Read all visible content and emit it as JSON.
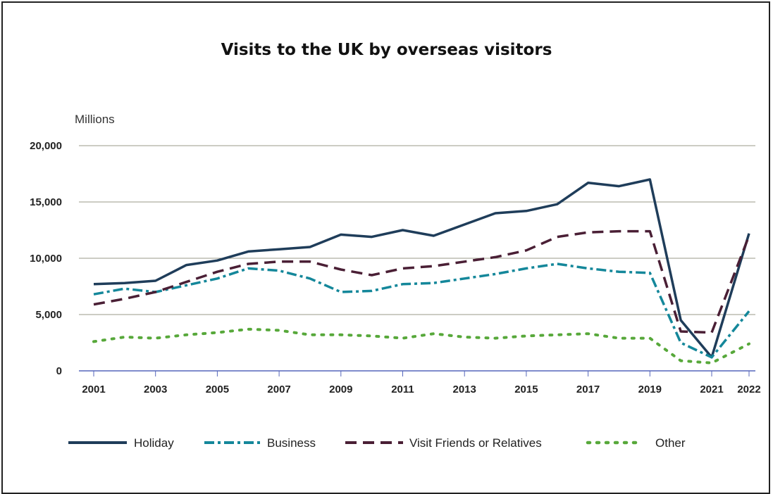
{
  "chart_data": {
    "type": "line",
    "title": "Visits to the UK by overseas visitors",
    "ylabel": "Millions",
    "xlabel": "",
    "ylim": [
      0,
      20000
    ],
    "yticks": [
      "0",
      "5,000",
      "10,000",
      "15,000",
      "20,000"
    ],
    "ytick_values": [
      0,
      5000,
      10000,
      15000,
      20000
    ],
    "xticks": [
      "2001",
      "2003",
      "2005",
      "2007",
      "2009",
      "2011",
      "2013",
      "2015",
      "2017",
      "2019",
      "2021",
      "2022"
    ],
    "xtick_values": [
      2001,
      2003,
      2005,
      2007,
      2009,
      2011,
      2013,
      2015,
      2017,
      2019,
      2021,
      2022
    ],
    "grid": "horizontal",
    "legend_position": "bottom",
    "x": [
      2001,
      2002,
      2003,
      2004,
      2005,
      2006,
      2007,
      2008,
      2009,
      2010,
      2011,
      2012,
      2013,
      2014,
      2015,
      2016,
      2017,
      2018,
      2019,
      2020,
      2021,
      2022
    ],
    "series": [
      {
        "name": "Holiday",
        "color": "#1f3d5a",
        "style": "solid",
        "values": [
          7700,
          7800,
          8000,
          9400,
          9800,
          10600,
          10800,
          11000,
          12100,
          11900,
          12500,
          12000,
          13000,
          14000,
          14200,
          14800,
          16700,
          16400,
          17000,
          4500,
          1200,
          12200
        ]
      },
      {
        "name": "Business",
        "color": "#14879a",
        "style": "dashdot",
        "values": [
          6800,
          7300,
          7000,
          7600,
          8200,
          9100,
          8900,
          8200,
          7000,
          7100,
          7700,
          7800,
          8200,
          8600,
          9100,
          9500,
          9100,
          8800,
          8700,
          2500,
          1200,
          5300
        ]
      },
      {
        "name": "Visit Friends or Relatives",
        "color": "#4a1f35",
        "style": "dashed",
        "values": [
          5900,
          6400,
          7000,
          7900,
          8800,
          9500,
          9700,
          9700,
          9000,
          8500,
          9100,
          9300,
          9700,
          10100,
          10700,
          11900,
          12300,
          12400,
          12400,
          3500,
          3400,
          12000
        ]
      },
      {
        "name": "Other",
        "color": "#57a83a",
        "style": "dotted",
        "values": [
          2600,
          3000,
          2900,
          3200,
          3400,
          3700,
          3600,
          3200,
          3200,
          3100,
          2900,
          3300,
          3000,
          2900,
          3100,
          3200,
          3300,
          2900,
          2900,
          900,
          700,
          2400
        ]
      }
    ]
  }
}
